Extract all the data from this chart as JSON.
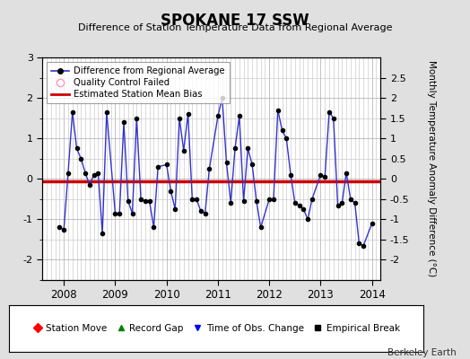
{
  "title": "SPOKANE 17 SSW",
  "subtitle": "Difference of Station Temperature Data from Regional Average",
  "ylabel": "Monthly Temperature Anomaly Difference (°C)",
  "watermark": "Berkeley Earth",
  "bias": -0.05,
  "ylim": [
    -2.5,
    3.0
  ],
  "xlim": [
    2007.58,
    2014.17
  ],
  "bg_color": "#e0e0e0",
  "plot_bg_color": "#ffffff",
  "line_color": "#3333cc",
  "marker_color": "#000000",
  "bias_color": "#cc0000",
  "months": [
    2007.917,
    2008.0,
    2008.083,
    2008.167,
    2008.25,
    2008.333,
    2008.417,
    2008.5,
    2008.583,
    2008.667,
    2008.75,
    2008.833,
    2009.0,
    2009.083,
    2009.167,
    2009.25,
    2009.333,
    2009.417,
    2009.5,
    2009.583,
    2009.667,
    2009.75,
    2009.833,
    2010.0,
    2010.083,
    2010.167,
    2010.25,
    2010.333,
    2010.417,
    2010.5,
    2010.583,
    2010.667,
    2010.75,
    2010.833,
    2011.0,
    2011.083,
    2011.167,
    2011.25,
    2011.333,
    2011.417,
    2011.5,
    2011.583,
    2011.667,
    2011.75,
    2011.833,
    2012.0,
    2012.083,
    2012.167,
    2012.25,
    2012.333,
    2012.417,
    2012.5,
    2012.583,
    2012.667,
    2012.75,
    2012.833,
    2013.0,
    2013.083,
    2013.167,
    2013.25,
    2013.333,
    2013.417,
    2013.5,
    2013.583,
    2013.667,
    2013.75,
    2013.833,
    2014.0
  ],
  "values": [
    -1.2,
    -1.25,
    0.15,
    1.65,
    0.75,
    0.5,
    0.15,
    -0.15,
    0.1,
    0.15,
    -1.35,
    1.65,
    -0.85,
    -0.85,
    1.4,
    -0.55,
    -0.85,
    1.5,
    -0.5,
    -0.55,
    -0.55,
    -1.2,
    0.3,
    0.35,
    -0.3,
    -0.75,
    1.5,
    0.7,
    1.6,
    -0.5,
    -0.5,
    -0.8,
    -0.85,
    0.25,
    1.55,
    2.0,
    0.4,
    -0.6,
    0.75,
    1.55,
    -0.55,
    0.75,
    0.35,
    -0.55,
    -1.2,
    -0.5,
    -0.5,
    1.7,
    1.2,
    1.0,
    0.1,
    -0.6,
    -0.65,
    -0.75,
    -1.0,
    -0.5,
    0.1,
    0.05,
    1.65,
    1.5,
    -0.65,
    -0.6,
    0.15,
    -0.5,
    -0.6,
    -1.6,
    -1.65,
    -1.1
  ],
  "left_yticks": [
    -2,
    -1,
    0,
    1,
    2,
    3
  ],
  "left_yticklabels": [
    "-2",
    "-1",
    "0",
    "1",
    "2",
    "3"
  ],
  "right_yticks": [
    -2,
    -1.5,
    -1,
    -0.5,
    0,
    0.5,
    1,
    1.5,
    2,
    2.5
  ],
  "right_yticklabels": [
    "-2",
    "-1.5",
    "-1",
    "-0.5",
    "0",
    "0.5",
    "1",
    "1.5",
    "2",
    "2.5"
  ],
  "xtick_positions": [
    2008,
    2009,
    2010,
    2011,
    2012,
    2013,
    2014
  ],
  "xtick_labels": [
    "2008",
    "2009",
    "2010",
    "2011",
    "2012",
    "2013",
    "2014"
  ]
}
